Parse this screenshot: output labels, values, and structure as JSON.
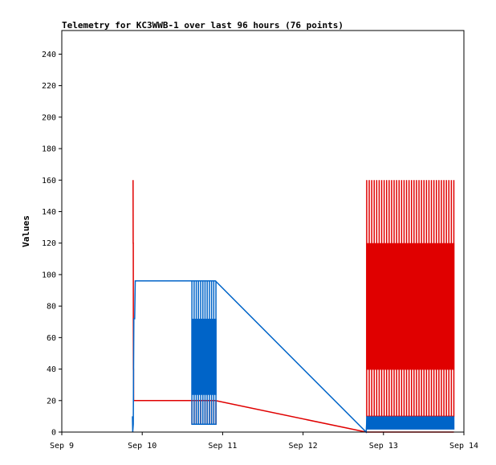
{
  "chart_data": {
    "type": "line",
    "title": "Telemetry for KC3WWB-1 over last 96 hours (76 points)",
    "xlabel": "",
    "ylabel": "Values",
    "ylim": [
      0,
      255
    ],
    "yticks": [
      0,
      20,
      40,
      60,
      80,
      100,
      120,
      140,
      160,
      180,
      200,
      220,
      240
    ],
    "xlim": [
      "2025-09-09T00:00",
      "2025-09-14T00:00"
    ],
    "xticks": [
      {
        "t": "2025-09-09T00:00",
        "label": "Sep 9"
      },
      {
        "t": "2025-09-10T00:00",
        "label": "Sep 10"
      },
      {
        "t": "2025-09-11T00:00",
        "label": "Sep 11"
      },
      {
        "t": "2025-09-12T00:00",
        "label": "Sep 12"
      },
      {
        "t": "2025-09-13T00:00",
        "label": "Sep 13"
      },
      {
        "t": "2025-09-14T00:00",
        "label": "Sep 14"
      }
    ],
    "grid": false,
    "legend": "none",
    "series": [
      {
        "color": "#e00000",
        "width": 1.5,
        "points": [
          [
            "2025-09-09T21:16",
            160
          ],
          [
            "2025-09-09T21:18",
            120
          ],
          [
            "2025-09-09T21:20",
            120
          ],
          [
            "2025-09-09T21:22",
            40
          ],
          [
            "2025-09-09T21:24",
            40
          ],
          [
            "2025-09-09T21:26",
            20
          ],
          [
            "2025-09-09T21:50",
            20
          ],
          [
            "2025-09-10T14:50",
            20
          ],
          [
            "2025-09-10T16:50",
            20
          ],
          [
            "2025-09-10T21:50",
            20
          ],
          [
            "2025-09-12T18:50",
            0
          ],
          [
            "2025-09-13T00:00",
            0
          ],
          [
            "2025-09-13T10:00",
            0
          ],
          [
            "2025-09-13T21:00",
            0
          ]
        ],
        "bursts": [
          {
            "t0": "2025-09-10T14:50",
            "t1": "2025-09-10T22:00",
            "n": 12,
            "hi": 20,
            "lo": 5
          },
          {
            "t0": "2025-09-12T19:00",
            "t1": "2025-09-13T21:00",
            "n": 36,
            "hi": 160,
            "lo": 10
          },
          {
            "t0": "2025-09-12T19:00",
            "t1": "2025-09-13T21:00",
            "n": 90,
            "hi": 120,
            "lo": 40
          }
        ]
      },
      {
        "color": "#0064c8",
        "width": 1.5,
        "points": [
          [
            "2025-09-09T21:05",
            10
          ],
          [
            "2025-09-09T21:10",
            0
          ],
          [
            "2025-09-09T21:20",
            5
          ],
          [
            "2025-09-09T21:30",
            72
          ],
          [
            "2025-09-09T21:45",
            72
          ],
          [
            "2025-09-09T21:55",
            96
          ],
          [
            "2025-09-10T14:50",
            96
          ],
          [
            "2025-09-10T21:50",
            96
          ],
          [
            "2025-09-12T18:50",
            0
          ],
          [
            "2025-09-12T19:05",
            10
          ]
        ],
        "bursts": [
          {
            "t0": "2025-09-10T14:50",
            "t1": "2025-09-10T22:00",
            "n": 12,
            "hi": 96,
            "lo": 5
          },
          {
            "t0": "2025-09-10T14:50",
            "t1": "2025-09-10T22:00",
            "n": 30,
            "hi": 72,
            "lo": 24
          },
          {
            "t0": "2025-09-12T19:00",
            "t1": "2025-09-13T21:00",
            "n": 90,
            "hi": 10,
            "lo": 2
          }
        ]
      },
      {
        "color": "#000000",
        "width": 1,
        "points": [
          [
            "2025-09-09T21:00",
            0
          ],
          [
            "2025-09-13T21:00",
            0
          ]
        ],
        "bursts": []
      }
    ]
  }
}
